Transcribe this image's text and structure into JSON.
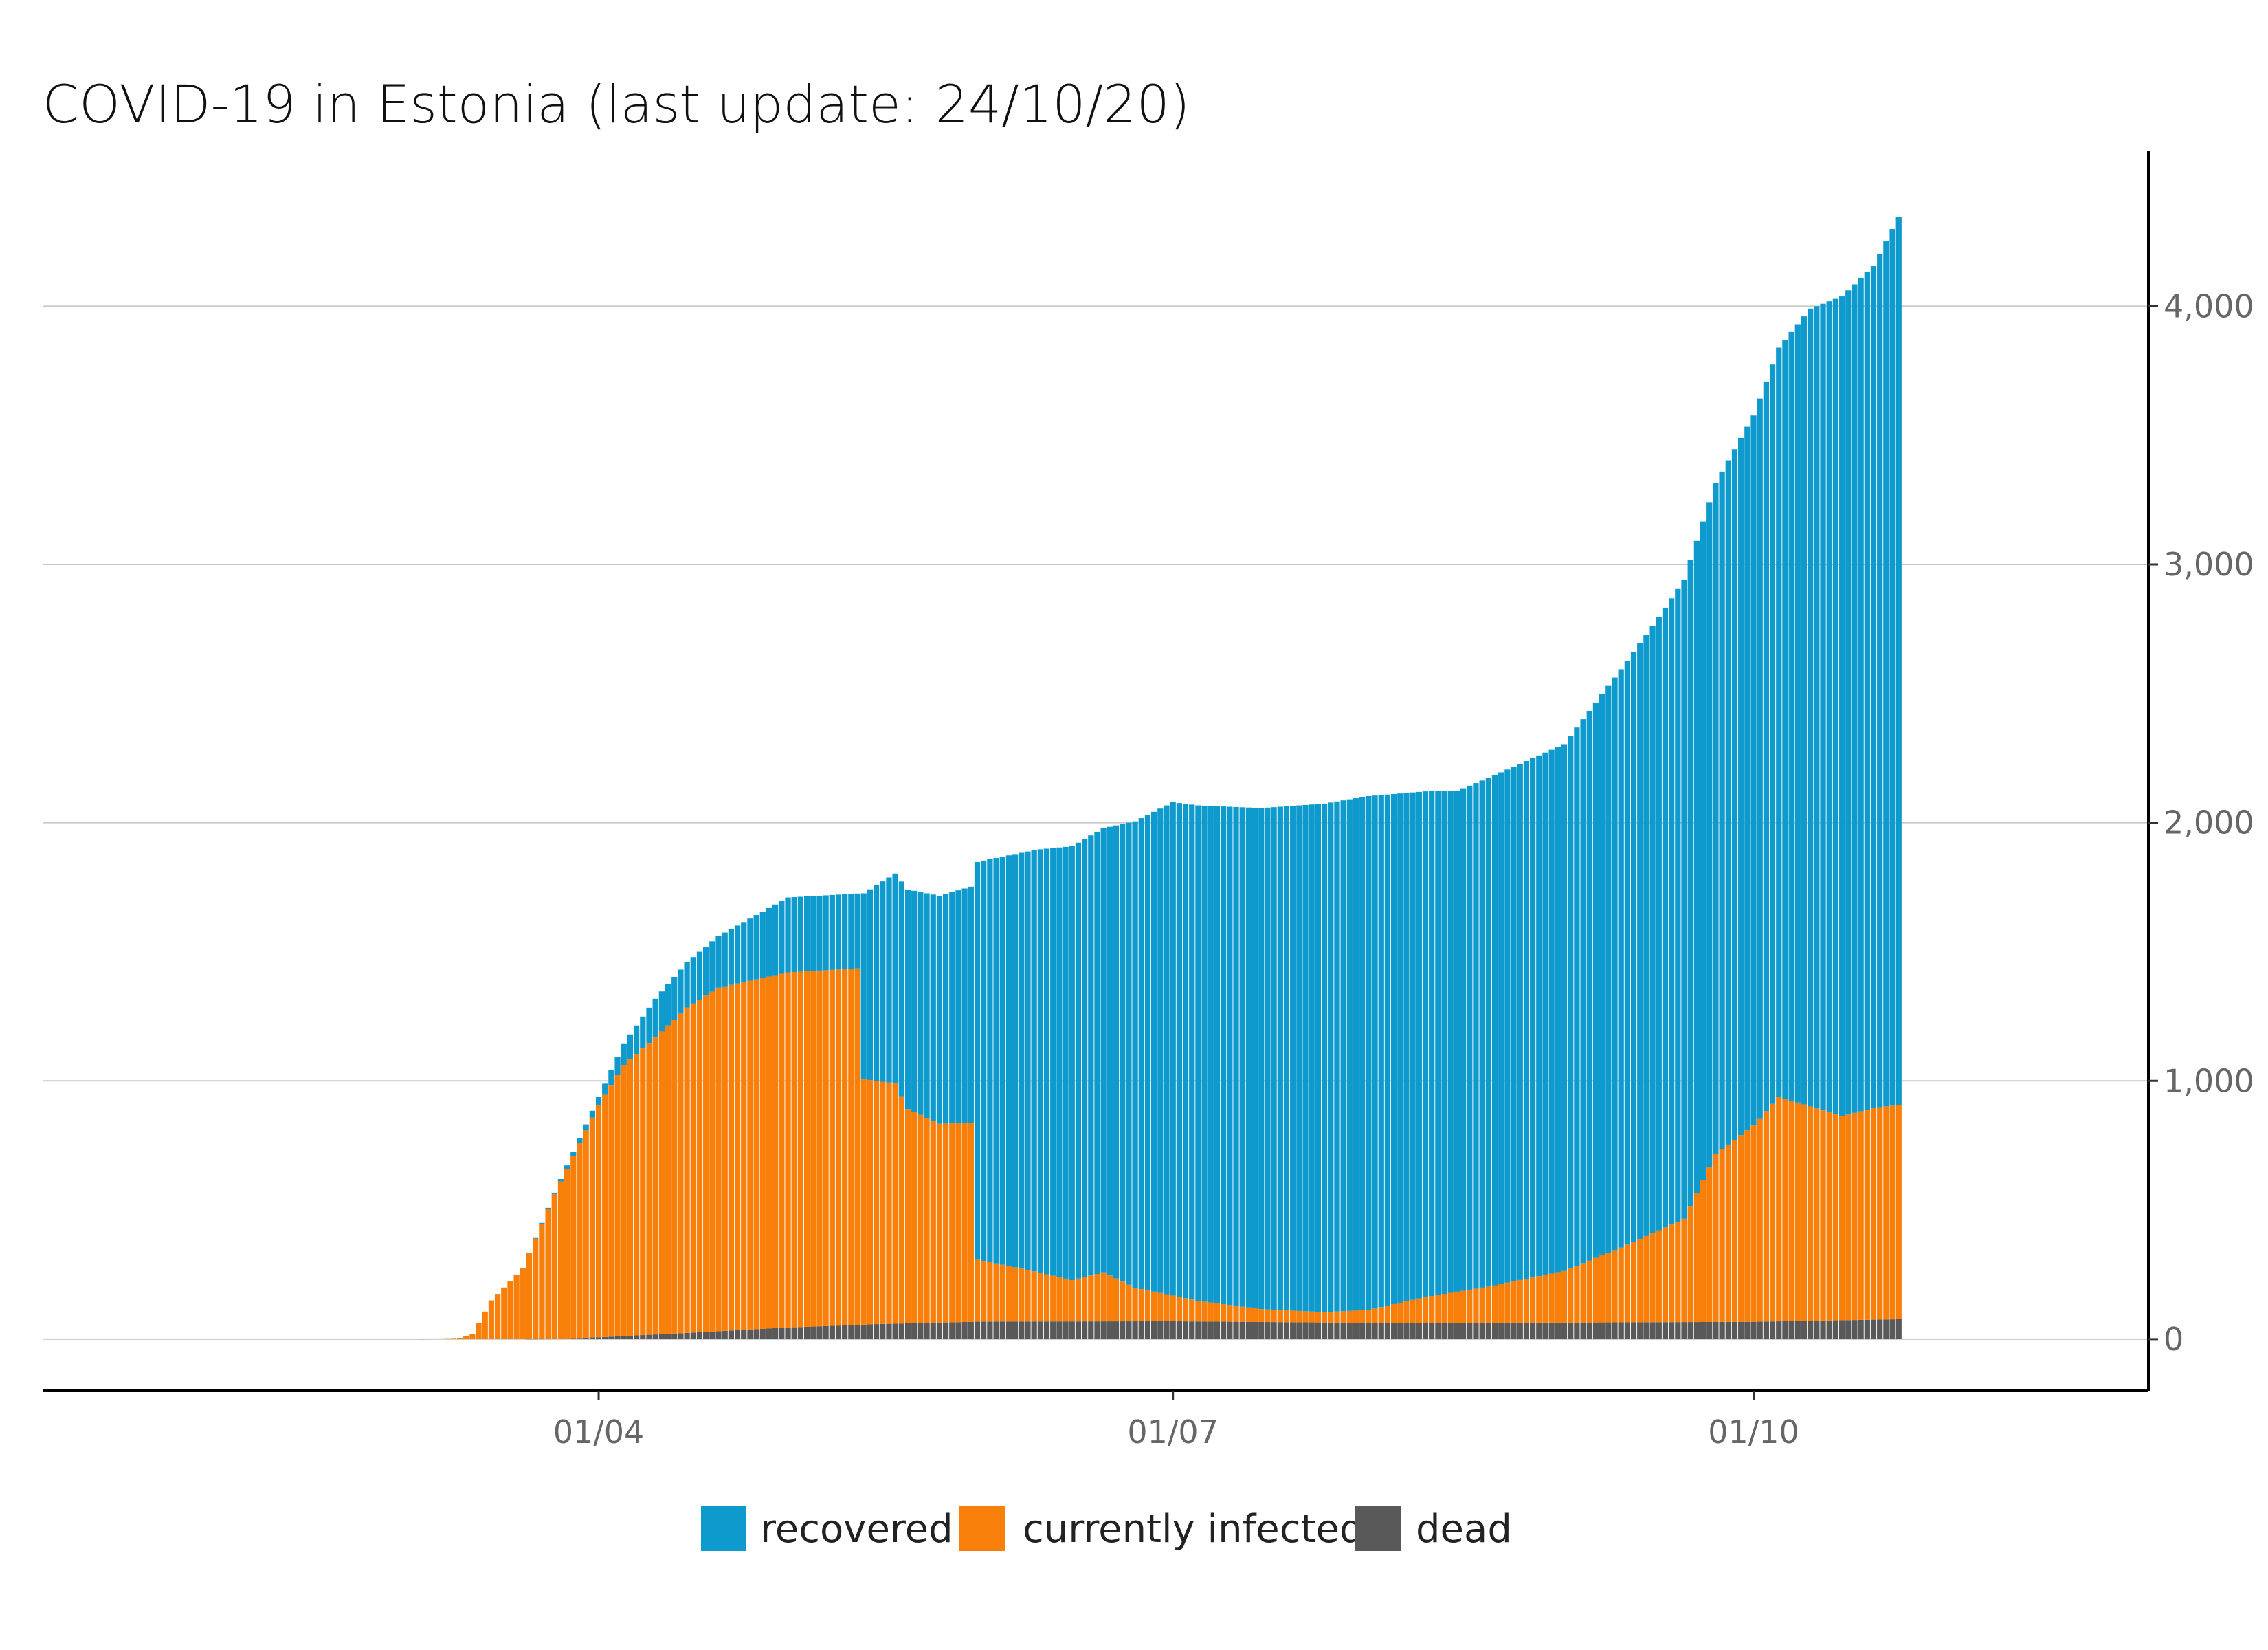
{
  "chart_data": {
    "type": "bar",
    "stacked": true,
    "title": "COVID-19 in Estonia (last update: 24/10/20)",
    "xlabel": "",
    "ylabel": "",
    "x_ticks": [
      "01/04",
      "01/07",
      "01/10"
    ],
    "y_ticks": [
      "0",
      "1,000",
      "2,000",
      "3,000",
      "4,000"
    ],
    "ylim": [
      -200,
      4600
    ],
    "y_axis_side": "right",
    "grid": "horizontal",
    "legend_position": "bottom",
    "date_range": [
      "2020-02-28",
      "2020-10-24"
    ],
    "series": [
      {
        "name": "dead",
        "color": "#595959",
        "points": [
          [
            "2020-02-28",
            0
          ],
          [
            "2020-03-20",
            0
          ],
          [
            "2020-03-25",
            1
          ],
          [
            "2020-04-01",
            7
          ],
          [
            "2020-04-15",
            24
          ],
          [
            "2020-05-01",
            45
          ],
          [
            "2020-05-15",
            58
          ],
          [
            "2020-06-01",
            68
          ],
          [
            "2020-07-01",
            69
          ],
          [
            "2020-08-01",
            63
          ],
          [
            "2020-09-01",
            64
          ],
          [
            "2020-10-01",
            67
          ],
          [
            "2020-10-24",
            77
          ]
        ]
      },
      {
        "name": "currently infected",
        "color": "#f97f0b",
        "points": [
          [
            "2020-02-28",
            0
          ],
          [
            "2020-03-03",
            0
          ],
          [
            "2020-03-05",
            1
          ],
          [
            "2020-03-10",
            5
          ],
          [
            "2020-03-12",
            20
          ],
          [
            "2020-03-15",
            150
          ],
          [
            "2020-03-20",
            275
          ],
          [
            "2020-03-25",
            560
          ],
          [
            "2020-04-01",
            900
          ],
          [
            "2020-04-05",
            1050
          ],
          [
            "2020-04-10",
            1150
          ],
          [
            "2020-04-15",
            1260
          ],
          [
            "2020-04-20",
            1330
          ],
          [
            "2020-05-01",
            1375
          ],
          [
            "2020-05-12",
            1380
          ],
          [
            "2020-05-13",
            950
          ],
          [
            "2020-05-18",
            930
          ],
          [
            "2020-05-20",
            830
          ],
          [
            "2020-05-25",
            770
          ],
          [
            "2020-05-30",
            770
          ],
          [
            "2020-05-31",
            240
          ],
          [
            "2020-06-08",
            200
          ],
          [
            "2020-06-15",
            160
          ],
          [
            "2020-06-20",
            190
          ],
          [
            "2020-06-25",
            130
          ],
          [
            "2020-07-05",
            80
          ],
          [
            "2020-07-15",
            50
          ],
          [
            "2020-07-25",
            40
          ],
          [
            "2020-08-01",
            50
          ],
          [
            "2020-08-10",
            100
          ],
          [
            "2020-08-20",
            140
          ],
          [
            "2020-09-01",
            200
          ],
          [
            "2020-09-10",
            290
          ],
          [
            "2020-09-20",
            400
          ],
          [
            "2020-09-25",
            650
          ],
          [
            "2020-10-01",
            760
          ],
          [
            "2020-10-05",
            870
          ],
          [
            "2020-10-10",
            830
          ],
          [
            "2020-10-15",
            790
          ],
          [
            "2020-10-20",
            820
          ],
          [
            "2020-10-24",
            830
          ]
        ]
      },
      {
        "name": "recovered",
        "color": "#0e9acd",
        "points": [
          [
            "2020-02-28",
            0
          ],
          [
            "2020-03-20",
            0
          ],
          [
            "2020-03-25",
            6
          ],
          [
            "2020-04-01",
            30
          ],
          [
            "2020-04-10",
            150
          ],
          [
            "2020-04-20",
            200
          ],
          [
            "2020-05-01",
            290
          ],
          [
            "2020-05-12",
            290
          ],
          [
            "2020-05-13",
            720
          ],
          [
            "2020-05-20",
            850
          ],
          [
            "2020-05-30",
            915
          ],
          [
            "2020-05-31",
            1540
          ],
          [
            "2020-06-10",
            1640
          ],
          [
            "2020-06-20",
            1720
          ],
          [
            "2020-07-01",
            1910
          ],
          [
            "2020-07-15",
            1940
          ],
          [
            "2020-08-01",
            1990
          ],
          [
            "2020-08-15",
            1940
          ],
          [
            "2020-09-01",
            2040
          ],
          [
            "2020-09-15",
            2350
          ],
          [
            "2020-10-01",
            2750
          ],
          [
            "2020-10-10",
            3090
          ],
          [
            "2020-10-20",
            3260
          ],
          [
            "2020-10-24",
            3440
          ]
        ]
      }
    ]
  }
}
